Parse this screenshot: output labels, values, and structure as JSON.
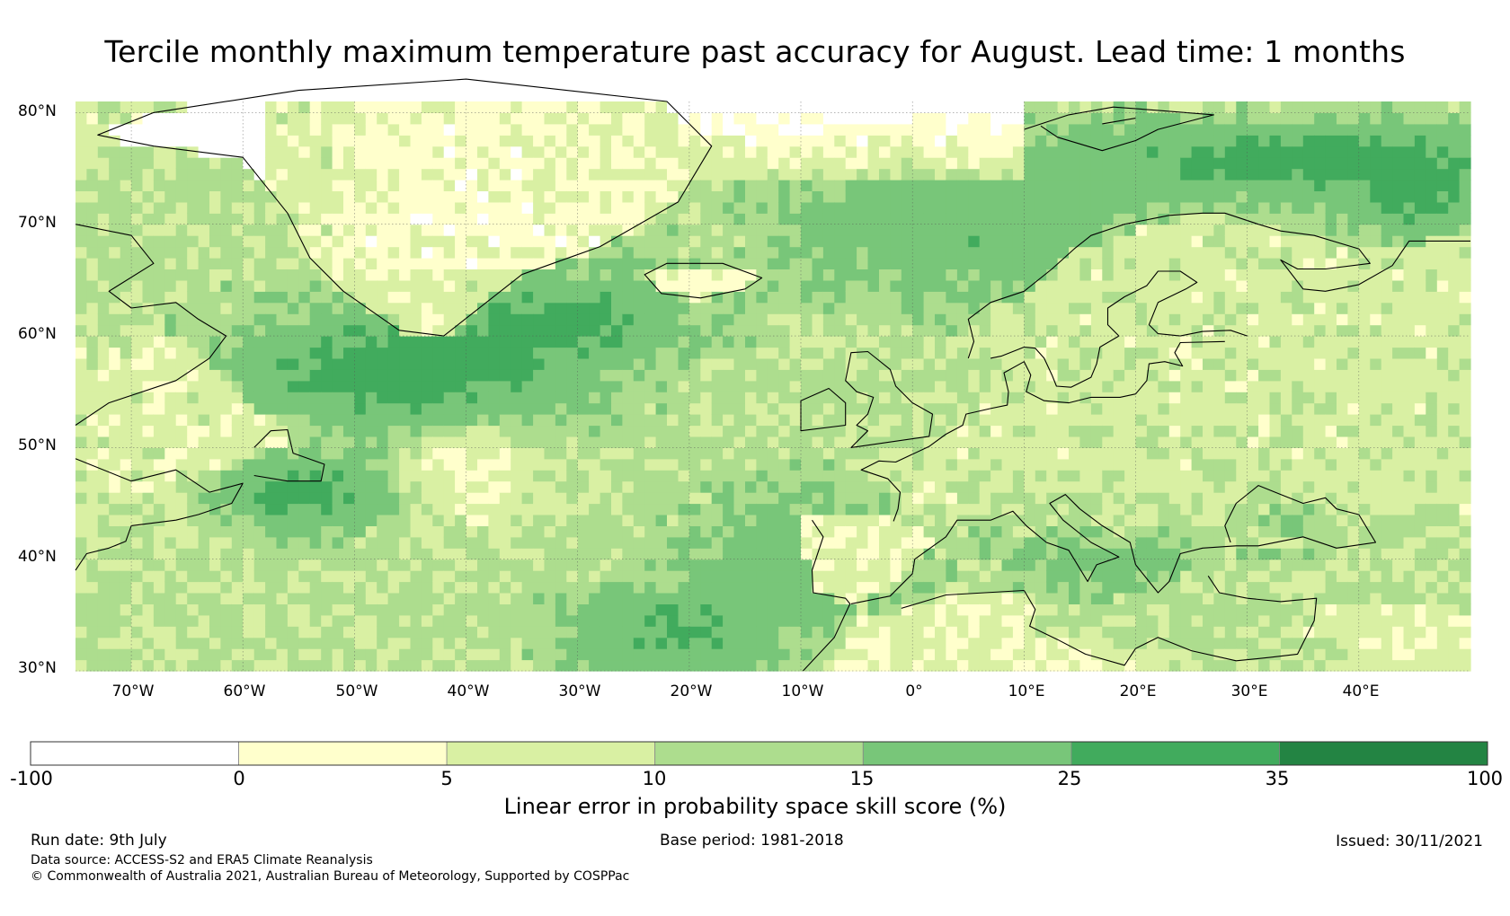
{
  "title": "Tercile monthly maximum temperature past accuracy for August. Lead time: 1 months",
  "map": {
    "lon_range": [
      -75,
      50
    ],
    "lat_range": [
      30,
      81
    ],
    "lat_ticks": [
      {
        "value": 80,
        "label": "80°N"
      },
      {
        "value": 70,
        "label": "70°N"
      },
      {
        "value": 60,
        "label": "60°N"
      },
      {
        "value": 50,
        "label": "50°N"
      },
      {
        "value": 40,
        "label": "40°N"
      },
      {
        "value": 30,
        "label": "30°N"
      }
    ],
    "lon_ticks": [
      {
        "value": -70,
        "label": "70°W"
      },
      {
        "value": -60,
        "label": "60°W"
      },
      {
        "value": -50,
        "label": "50°W"
      },
      {
        "value": -40,
        "label": "40°W"
      },
      {
        "value": -30,
        "label": "30°W"
      },
      {
        "value": -20,
        "label": "20°W"
      },
      {
        "value": -10,
        "label": "10°W"
      },
      {
        "value": 0,
        "label": "0°"
      },
      {
        "value": 10,
        "label": "10°E"
      },
      {
        "value": 20,
        "label": "20°E"
      },
      {
        "value": 30,
        "label": "30°E"
      },
      {
        "value": 40,
        "label": "40°E"
      }
    ]
  },
  "colorbar": {
    "bins": [
      {
        "from": -100,
        "to": 0,
        "color": "#ffffff"
      },
      {
        "from": 0,
        "to": 5,
        "color": "#ffffcc"
      },
      {
        "from": 5,
        "to": 10,
        "color": "#d9f0a3"
      },
      {
        "from": 10,
        "to": 15,
        "color": "#addd8e"
      },
      {
        "from": 15,
        "to": 25,
        "color": "#78c679"
      },
      {
        "from": 25,
        "to": 35,
        "color": "#41ab5d"
      },
      {
        "from": 35,
        "to": 100,
        "color": "#238443"
      }
    ],
    "tick_labels": [
      "-100",
      "0",
      "5",
      "10",
      "15",
      "25",
      "35",
      "100"
    ],
    "label": "Linear error in probability space skill score (%)"
  },
  "footer": {
    "run_date": "Run date: 9th July",
    "base_period": "Base period: 1981-2018",
    "issued": "Issued: 30/11/2021",
    "data_source": "Data source: ACCESS-S2 and ERA5 Climate Reanalysis",
    "copyright": "© Commonwealth of Australia 2021, Australian Bureau of Meteorology, Supported by COSPPac"
  }
}
